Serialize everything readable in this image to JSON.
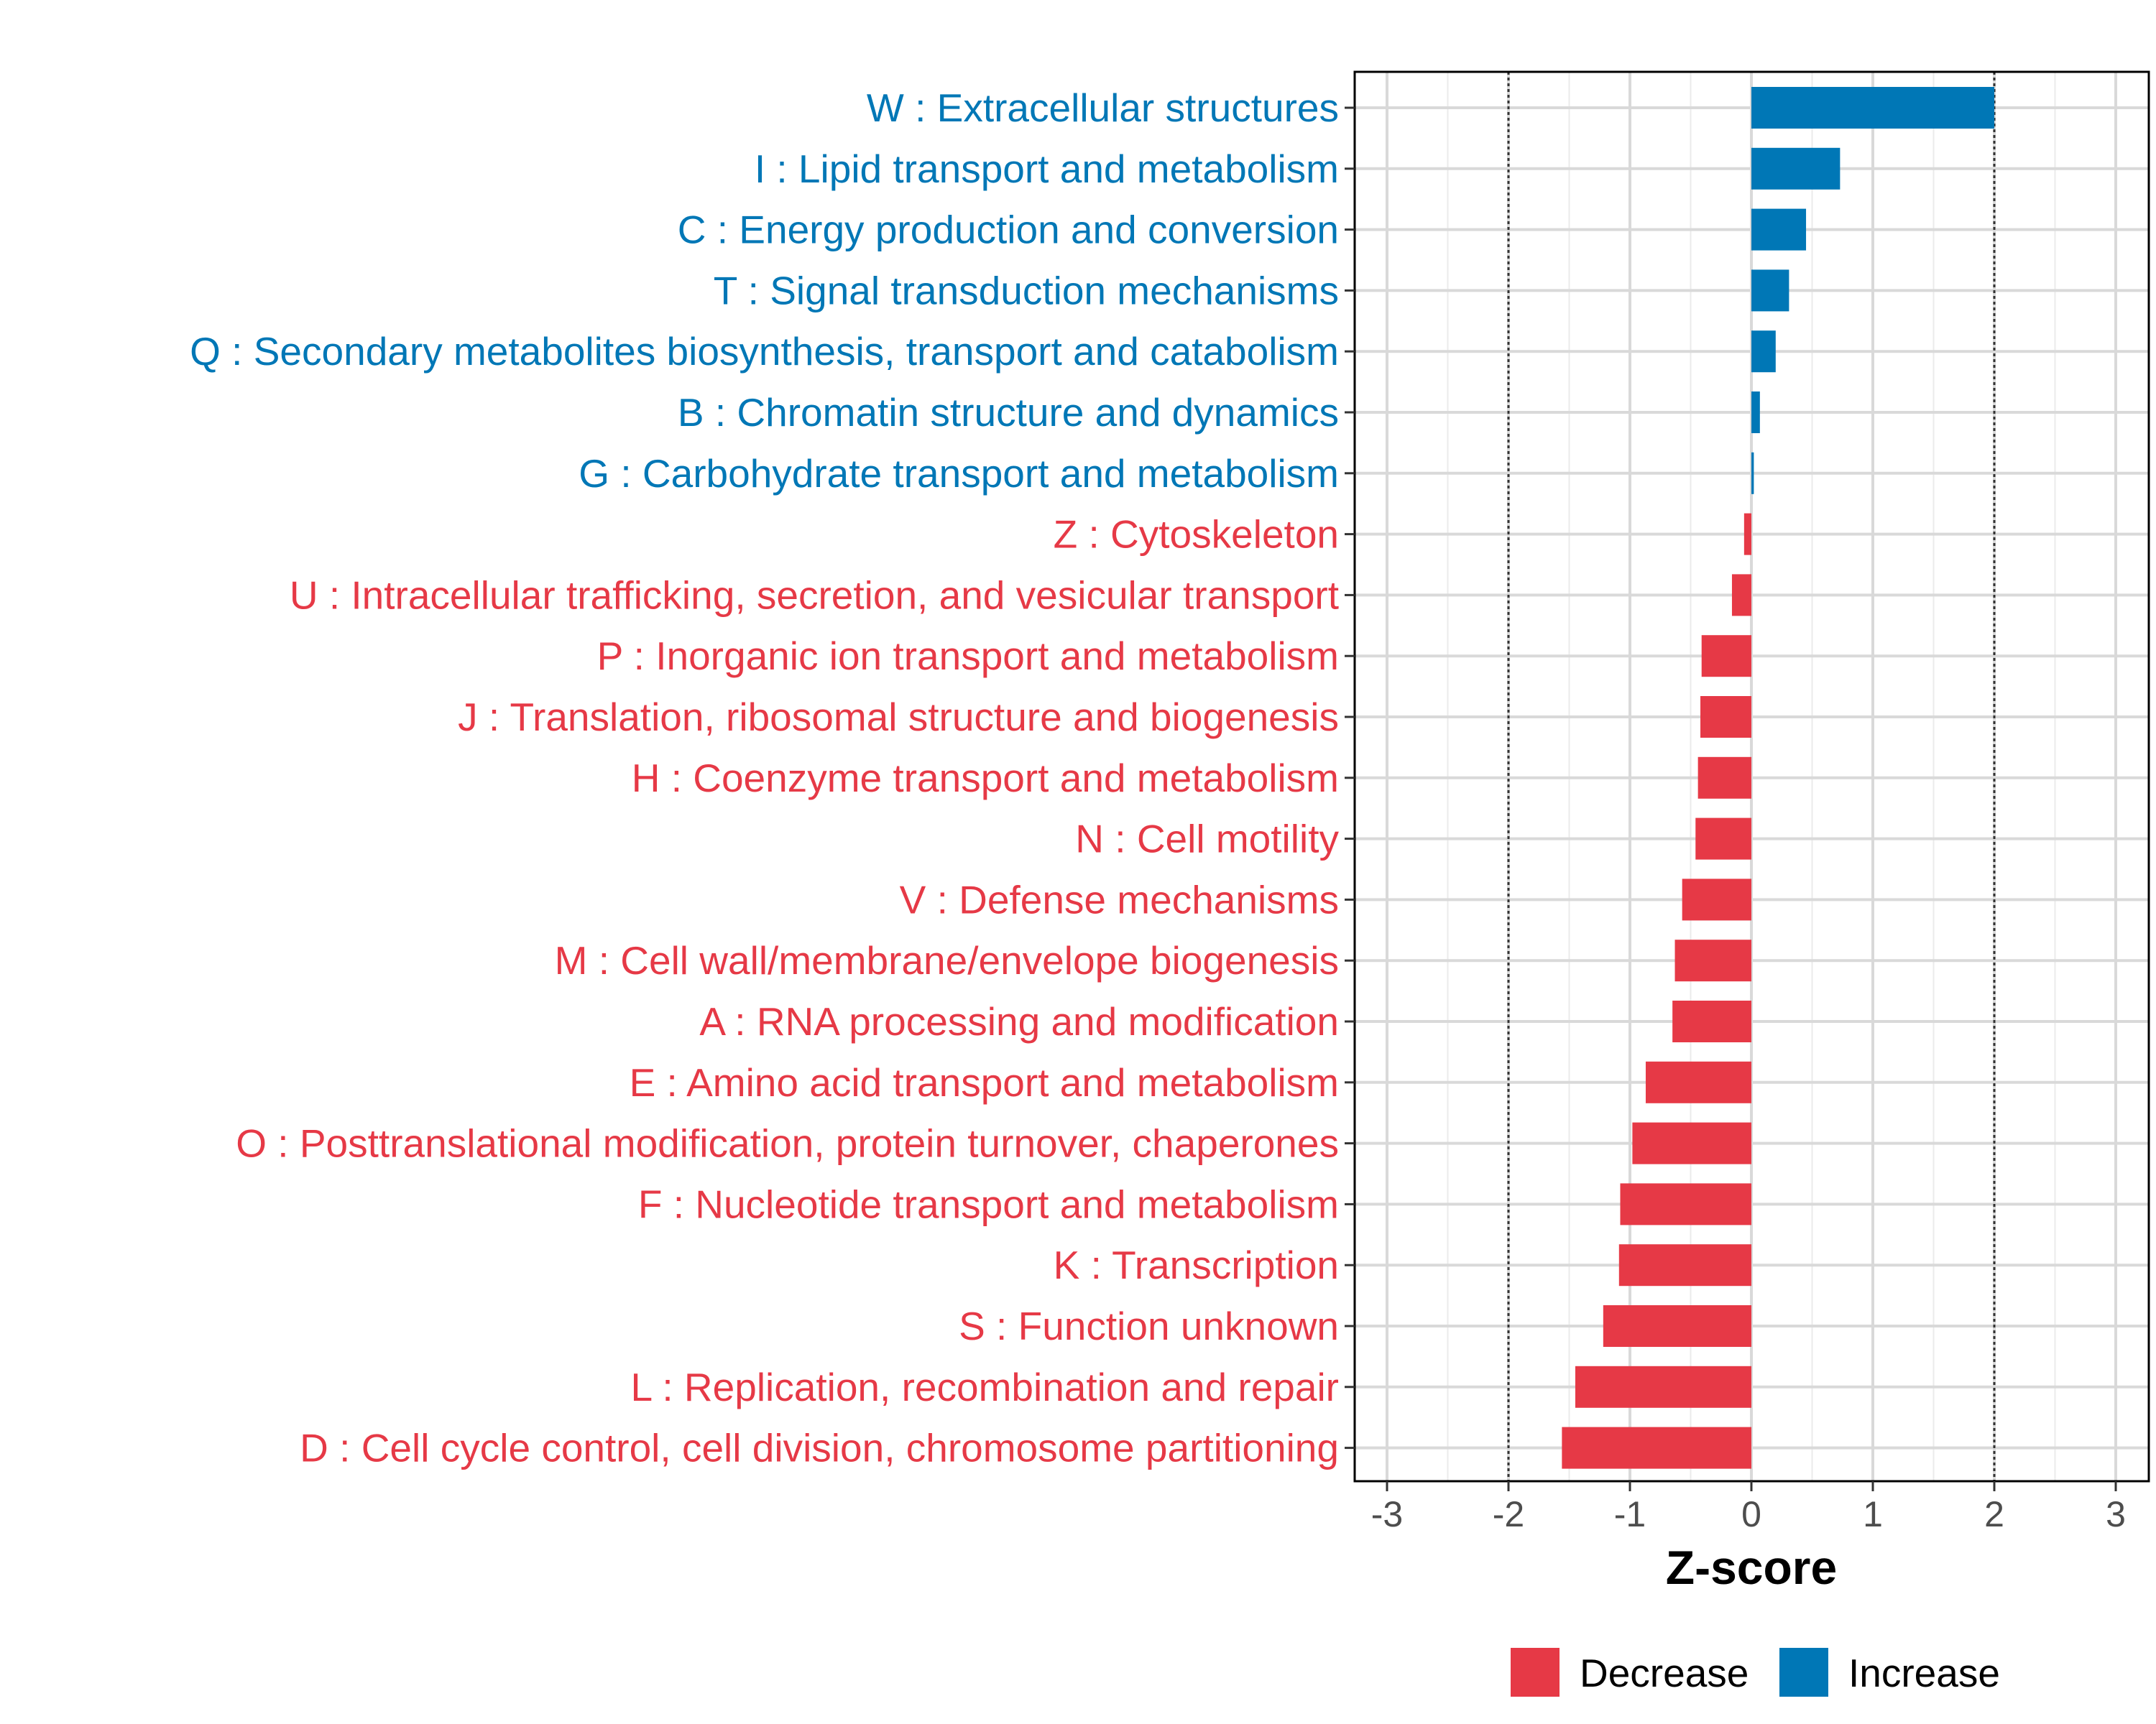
{
  "chart_data": {
    "type": "bar",
    "orientation": "horizontal",
    "xlabel": "Z-score",
    "xlim": [
      -3.3,
      3.3
    ],
    "xticks": [
      -3,
      -2,
      -1,
      0,
      1,
      2,
      3
    ],
    "xtick_labels": [
      "-3",
      "-2",
      "-1",
      "0",
      "1",
      "2",
      "3"
    ],
    "reference_lines": [
      -2,
      2
    ],
    "grid": true,
    "colors": {
      "Decrease": "#e63946",
      "Increase": "#0077b6"
    },
    "categories": [
      "W : Extracellular structures",
      "I : Lipid transport and metabolism",
      "C : Energy production and conversion",
      "T : Signal transduction mechanisms",
      "Q : Secondary metabolites biosynthesis, transport and catabolism",
      "B : Chromatin structure and dynamics",
      "G : Carbohydrate transport and metabolism",
      "Z : Cytoskeleton",
      "U : Intracellular trafficking, secretion, and vesicular transport",
      "P : Inorganic ion transport and metabolism",
      "J : Translation, ribosomal structure and biogenesis",
      "H : Coenzyme transport and metabolism",
      "N : Cell motility",
      "V : Defense mechanisms",
      "M : Cell wall/membrane/envelope biogenesis",
      "A : RNA processing and modification",
      "E : Amino acid transport and metabolism",
      "O : Posttranslational modification, protein turnover, chaperones",
      "F : Nucleotide transport and metabolism",
      "K : Transcription",
      "S : Function unknown",
      "L : Replication, recombination and repair",
      "D : Cell cycle control, cell division, chromosome partitioning"
    ],
    "values": [
      2.0,
      0.73,
      0.45,
      0.31,
      0.2,
      0.07,
      0.02,
      -0.06,
      -0.16,
      -0.41,
      -0.42,
      -0.44,
      -0.46,
      -0.57,
      -0.63,
      -0.65,
      -0.87,
      -0.98,
      -1.08,
      -1.09,
      -1.22,
      -1.45,
      -1.56
    ],
    "groups": [
      "Increase",
      "Increase",
      "Increase",
      "Increase",
      "Increase",
      "Increase",
      "Increase",
      "Decrease",
      "Decrease",
      "Decrease",
      "Decrease",
      "Decrease",
      "Decrease",
      "Decrease",
      "Decrease",
      "Decrease",
      "Decrease",
      "Decrease",
      "Decrease",
      "Decrease",
      "Decrease",
      "Decrease",
      "Decrease"
    ],
    "legend": {
      "position": "bottom",
      "entries": [
        {
          "label": "Decrease",
          "color": "#e63946"
        },
        {
          "label": "Increase",
          "color": "#0077b6"
        }
      ]
    }
  }
}
